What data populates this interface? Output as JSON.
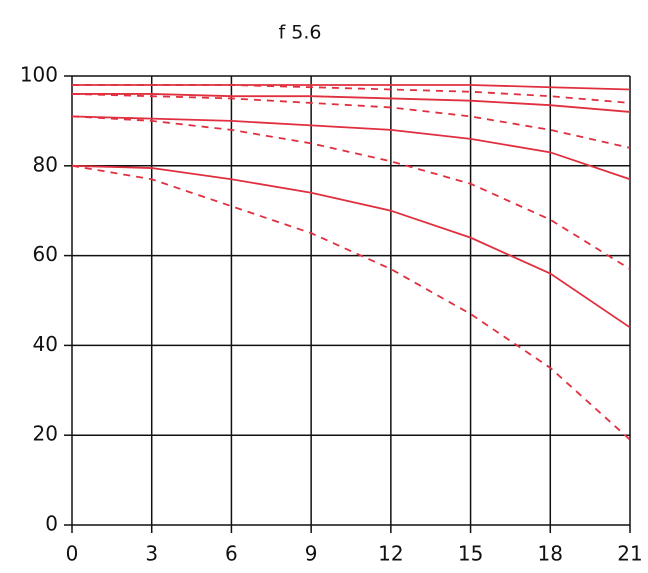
{
  "chart_data": {
    "type": "line",
    "title": "f 5.6",
    "x": [
      0,
      3,
      6,
      9,
      12,
      15,
      18,
      21
    ],
    "xlim": [
      0,
      21
    ],
    "xticks": [
      0,
      3,
      6,
      9,
      12,
      15,
      18,
      21
    ],
    "ylim": [
      0,
      100
    ],
    "yticks": [
      0,
      20,
      40,
      60,
      80,
      100
    ],
    "grid": true,
    "series": [
      {
        "color": "#e0303f",
        "dashed": false,
        "values": [
          98,
          98,
          98,
          98,
          98,
          98,
          97.5,
          97
        ]
      },
      {
        "color": "#e0303f",
        "dashed": true,
        "values": [
          98,
          98,
          98,
          97.5,
          97,
          96.5,
          95.5,
          94
        ]
      },
      {
        "color": "#e0303f",
        "dashed": false,
        "values": [
          96,
          96,
          95.5,
          95.5,
          95,
          94.5,
          93.5,
          92
        ]
      },
      {
        "color": "#e0303f",
        "dashed": true,
        "values": [
          96,
          95.5,
          95,
          94,
          93,
          91,
          88,
          84
        ]
      },
      {
        "color": "#e0303f",
        "dashed": false,
        "values": [
          91,
          90.5,
          90,
          89,
          88,
          86,
          83,
          77
        ]
      },
      {
        "color": "#e0303f",
        "dashed": true,
        "values": [
          91,
          90,
          88,
          85,
          81,
          76,
          68,
          57
        ]
      },
      {
        "color": "#e0303f",
        "dashed": false,
        "values": [
          80,
          79.5,
          77,
          74,
          70,
          64,
          56,
          44
        ]
      },
      {
        "color": "#e0303f",
        "dashed": true,
        "values": [
          80,
          77,
          71,
          65,
          57,
          47,
          35,
          19
        ]
      }
    ]
  }
}
